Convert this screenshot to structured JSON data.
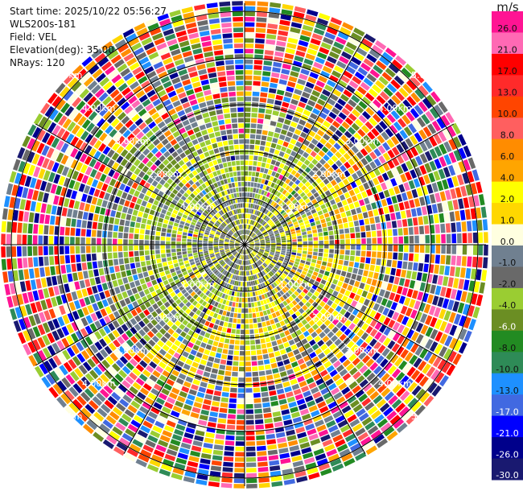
{
  "info": {
    "start_time": "Start time: 2025/10/22 05:56:27",
    "instrument": "WLS200s-181",
    "field": "Field: VEL",
    "elevation": "Elevation(deg): 35.00",
    "nrays": "NRays: 120"
  },
  "colorbar": {
    "unit": "m/s",
    "ticks": [
      "26.0",
      "21.0",
      "17.0",
      "13.0",
      "10.0",
      "8.0",
      "6.0",
      "4.0",
      "2.0",
      "1.0",
      "0.0",
      "-1.0",
      "-2.0",
      "-4.0",
      "-6.0",
      "-8.0",
      "-10.0",
      "-13.0",
      "-17.0",
      "-21.0",
      "-26.0",
      "-30.0"
    ],
    "colors": [
      "#ff1493",
      "#ff69b4",
      "#ff0000",
      "#ff2a2a",
      "#ff4500",
      "#ff5f5f",
      "#ff8c00",
      "#ffa500",
      "#ffff00",
      "#ffd700",
      "#ffffe0",
      "#708090",
      "#696969",
      "#9acd32",
      "#6b8e23",
      "#228b22",
      "#2e8b57",
      "#1e90ff",
      "#4169e1",
      "#0000ff",
      "#00008b",
      "#191970"
    ]
  },
  "chart_data": {
    "type": "ppi",
    "field": "VEL",
    "units": "m/s",
    "elevation_deg": 35.0,
    "n_rays": 120,
    "range_rings_km": [
      "1.00km",
      "2.00km",
      "3.00km",
      "4.00km",
      "5.00km"
    ],
    "max_range_km": 5.0,
    "description_of_pattern": "near-range weak velocities (gray/olive), a band of yellow 1-4 m/s east/south, and noisy random colors beyond ~3 km"
  }
}
